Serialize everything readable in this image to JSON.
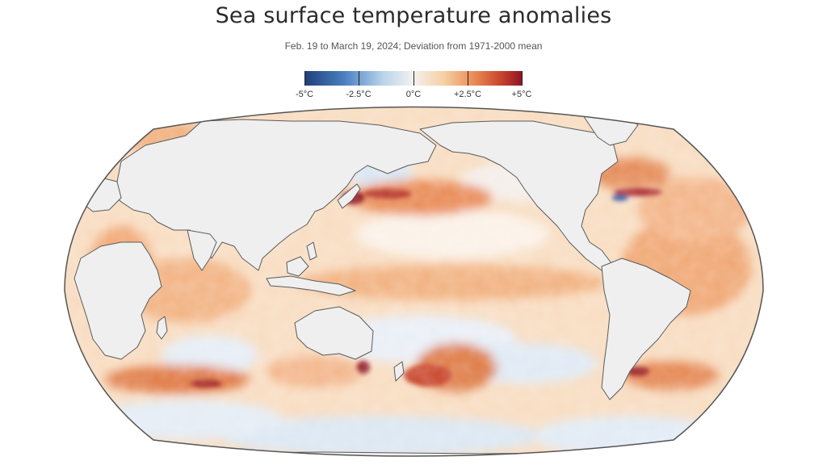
{
  "header": {
    "title": "Sea surface temperature anomalies",
    "subtitle": "Feb. 19 to March 19, 2024; Deviation from 1971-2000 mean"
  },
  "legend": {
    "labels": [
      "-5°C",
      "-2.5°C",
      "0°C",
      "+2.5°C",
      "+5°C"
    ],
    "colors": [
      "#1f3f7a",
      "#4a7fbf",
      "#b9d4ec",
      "#f4f1ee",
      "#f6cfa2",
      "#e98a55",
      "#c8452c",
      "#8f1322"
    ]
  },
  "map": {
    "projection": "Robinson",
    "land_color": "#efefef",
    "ocean_base_color": "#f8dcc0"
  }
}
